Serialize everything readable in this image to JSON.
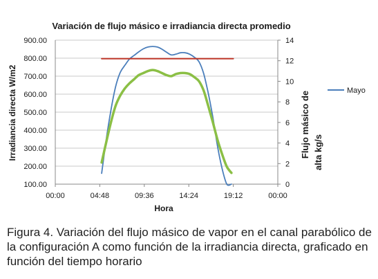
{
  "chart_data": {
    "type": "line",
    "title": "Variación de flujo másico e irradiancia directa promedio",
    "xlabel": "Hora",
    "ylabel_left": "Irradiancia directa W/m2",
    "ylabel_right_lines": [
      "Flujo másico de",
      "alta kg/s"
    ],
    "x_ticks": [
      "00:00",
      "04:48",
      "09:36",
      "14:24",
      "19:12",
      "00:00"
    ],
    "x_range_hours": [
      0,
      24
    ],
    "y_left_ticks": [
      "100.00",
      "200.00",
      "300.00",
      "400.00",
      "500.00",
      "600.00",
      "700.00",
      "800.00",
      "900.00"
    ],
    "y_left_range": [
      100,
      900
    ],
    "y_right_ticks": [
      "0",
      "2",
      "4",
      "6",
      "8",
      "10",
      "12",
      "14"
    ],
    "y_right_range": [
      0,
      14
    ],
    "grid": "horizontal",
    "legend": {
      "position": "right",
      "entries": [
        "Mayo"
      ]
    },
    "series": [
      {
        "name": "Mayo",
        "axis": "left",
        "color": "#4a7ebb",
        "x": [
          5.0,
          5.5,
          6.0,
          6.5,
          7.0,
          7.5,
          8.0,
          8.5,
          9.0,
          9.5,
          10.0,
          10.5,
          11.0,
          11.5,
          12.0,
          12.5,
          13.0,
          13.5,
          14.0,
          14.5,
          15.0,
          15.5,
          16.0,
          16.5,
          17.0,
          17.5,
          18.0,
          18.5,
          19.0
        ],
        "y": [
          160,
          350,
          510,
          640,
          720,
          760,
          795,
          815,
          835,
          852,
          862,
          865,
          862,
          850,
          833,
          818,
          822,
          830,
          830,
          822,
          805,
          780,
          715,
          605,
          470,
          310,
          185,
          100,
          100
        ]
      },
      {
        "axis": "right",
        "color": "#c0392b",
        "x": [
          5.0,
          19.2
        ],
        "y": [
          12.2,
          12.2
        ]
      },
      {
        "axis": "right",
        "color": "#8bbf45",
        "x": [
          5.0,
          5.5,
          6.0,
          6.5,
          7.0,
          7.5,
          8.0,
          8.5,
          9.0,
          9.5,
          10.0,
          10.5,
          11.0,
          11.5,
          12.0,
          12.5,
          13.0,
          13.5,
          14.0,
          14.5,
          15.0,
          15.5,
          16.0,
          16.5,
          17.0,
          17.5,
          18.0,
          18.5,
          19.0
        ],
        "y": [
          2.1,
          4.1,
          6.0,
          7.6,
          8.6,
          9.3,
          9.8,
          10.2,
          10.6,
          10.8,
          11.0,
          11.1,
          11.0,
          10.8,
          10.6,
          10.5,
          10.7,
          10.8,
          10.8,
          10.7,
          10.4,
          10.0,
          9.1,
          7.6,
          6.0,
          4.3,
          2.9,
          1.7,
          1.1
        ]
      }
    ]
  },
  "caption": "Figura 4. Variación del flujo másico de vapor en el canal parabólico de la configuración A como función de la irradiancia directa, graficado en función del tiempo horario"
}
